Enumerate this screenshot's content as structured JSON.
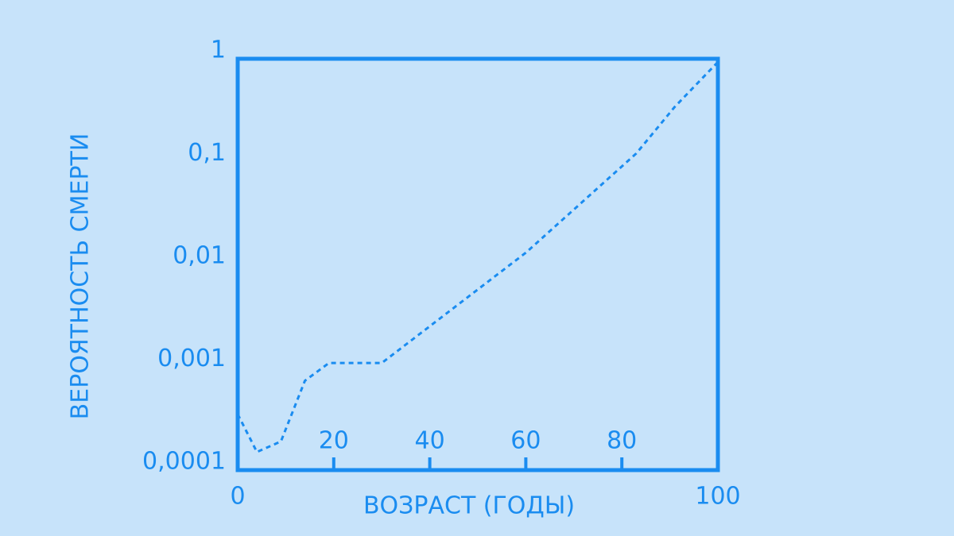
{
  "chart_data": {
    "type": "line",
    "xlabel": "ВОЗРАСТ (ГОДЫ)",
    "ylabel": "ВЕРОЯТНОСТЬ СМЕРТИ",
    "x": [
      0,
      4,
      9,
      14,
      19,
      30,
      60,
      83,
      91,
      100
    ],
    "series": [
      {
        "color": "#1a8cf0",
        "linestyle": "dashed",
        "values": [
          0.00035,
          0.00015,
          0.00019,
          0.00074,
          0.0011,
          0.0011,
          0.013,
          0.12,
          0.34,
          0.93
        ]
      }
    ],
    "xlim": [
      0,
      100
    ],
    "xticks": [
      0,
      20,
      40,
      60,
      80,
      100
    ],
    "ylim": [
      0.0001,
      1
    ],
    "log_y": true,
    "yticks": [
      {
        "value": 0.0001,
        "label": "0,0001"
      },
      {
        "value": 0.001,
        "label": "0,001"
      },
      {
        "value": 0.01,
        "label": "0,01"
      },
      {
        "value": 0.1,
        "label": "0,1"
      },
      1
    ]
  }
}
